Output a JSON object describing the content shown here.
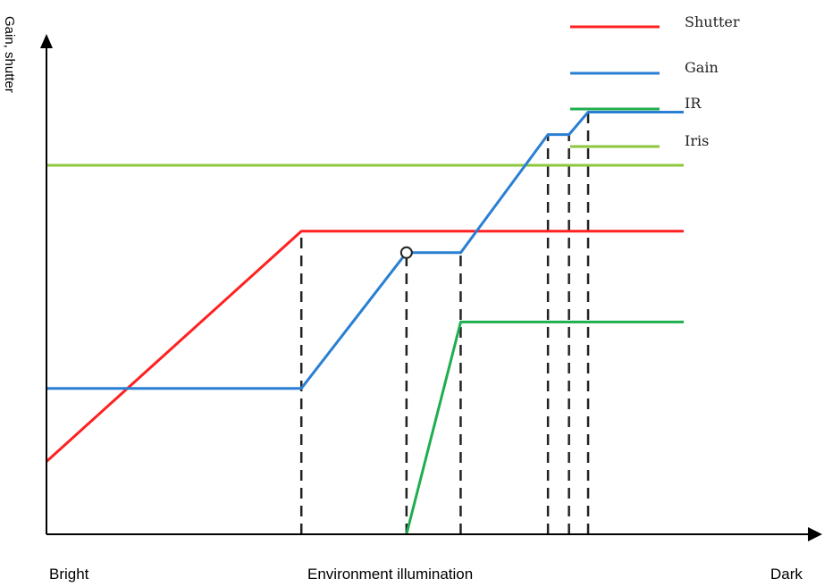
{
  "chart_data": {
    "type": "line",
    "ylabel": "Gain, shutter",
    "xlabels": {
      "left": "Bright",
      "center": "Environment illumination",
      "right": "Dark"
    },
    "xlim": [
      0,
      100
    ],
    "ylim": [
      0,
      100
    ],
    "colors": {
      "Shutter": "#ff2020",
      "Gain": "#2a7fd4",
      "IR": "#1fae4f",
      "Iris": "#8dc63f"
    },
    "series": [
      {
        "name": "Iris",
        "x": [
          0,
          100
        ],
        "y": [
          75.6,
          75.6
        ]
      },
      {
        "name": "Shutter",
        "x": [
          0,
          40,
          100
        ],
        "y": [
          14.9,
          62.1,
          62.1
        ]
      },
      {
        "name": "Gain",
        "x": [
          0,
          40,
          56.5,
          65,
          78.7,
          82,
          85,
          100
        ],
        "y": [
          29.9,
          29.9,
          57.7,
          57.7,
          81.9,
          81.9,
          86.5,
          86.5
        ]
      },
      {
        "name": "IR",
        "x": [
          56.5,
          65,
          100
        ],
        "y": [
          0,
          43.5,
          43.5
        ]
      }
    ],
    "dashed_x": [
      40,
      56.5,
      65,
      78.7,
      82,
      85
    ],
    "marker": {
      "x": 56.5,
      "y": 57.7
    },
    "legend": [
      "Shutter",
      "Gain",
      "IR",
      "Iris"
    ],
    "legend_position": "top-right"
  }
}
